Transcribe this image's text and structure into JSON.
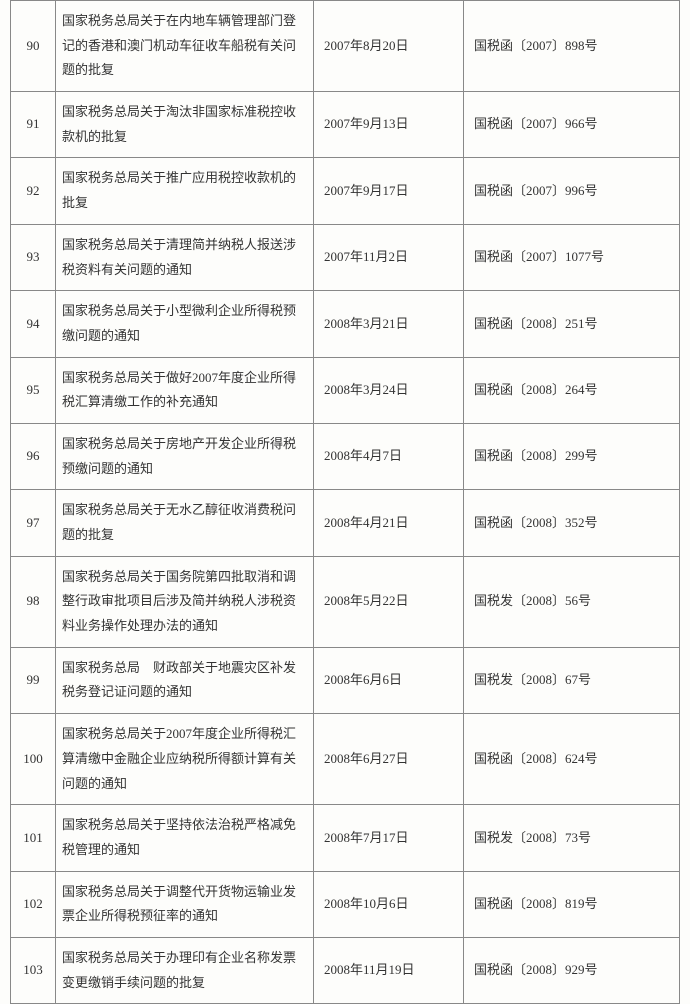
{
  "rows": [
    {
      "idx": "90",
      "title": "国家税务总局关于在内地车辆管理部门登记的香港和澳门机动车征收车船税有关问题的批复",
      "date": "2007年8月20日",
      "ref": "国税函〔2007〕898号"
    },
    {
      "idx": "91",
      "title": "国家税务总局关于淘汰非国家标准税控收款机的批复",
      "date": "2007年9月13日",
      "ref": "国税函〔2007〕966号"
    },
    {
      "idx": "92",
      "title": "国家税务总局关于推广应用税控收款机的批复",
      "date": "2007年9月17日",
      "ref": "国税函〔2007〕996号"
    },
    {
      "idx": "93",
      "title": "国家税务总局关于清理简并纳税人报送涉税资料有关问题的通知",
      "date": "2007年11月2日",
      "ref": "国税函〔2007〕1077号"
    },
    {
      "idx": "94",
      "title": "国家税务总局关于小型微利企业所得税预缴问题的通知",
      "date": "2008年3月21日",
      "ref": "国税函〔2008〕251号"
    },
    {
      "idx": "95",
      "title": "国家税务总局关于做好2007年度企业所得税汇算清缴工作的补充通知",
      "date": "2008年3月24日",
      "ref": "国税函〔2008〕264号"
    },
    {
      "idx": "96",
      "title": "国家税务总局关于房地产开发企业所得税预缴问题的通知",
      "date": "2008年4月7日",
      "ref": "国税函〔2008〕299号"
    },
    {
      "idx": "97",
      "title": "国家税务总局关于无水乙醇征收消费税问题的批复",
      "date": "2008年4月21日",
      "ref": "国税函〔2008〕352号"
    },
    {
      "idx": "98",
      "title": "国家税务总局关于国务院第四批取消和调整行政审批项目后涉及简并纳税人涉税资料业务操作处理办法的通知",
      "date": "2008年5月22日",
      "ref": "国税发〔2008〕56号"
    },
    {
      "idx": "99",
      "title": "国家税务总局　财政部关于地震灾区补发税务登记证问题的通知",
      "date": "2008年6月6日",
      "ref": "国税发〔2008〕67号"
    },
    {
      "idx": "100",
      "title": "国家税务总局关于2007年度企业所得税汇算清缴中金融企业应纳税所得额计算有关问题的通知",
      "date": "2008年6月27日",
      "ref": "国税函〔2008〕624号"
    },
    {
      "idx": "101",
      "title": "国家税务总局关于坚持依法治税严格减免税管理的通知",
      "date": "2008年7月17日",
      "ref": "国税发〔2008〕73号"
    },
    {
      "idx": "102",
      "title": "国家税务总局关于调整代开货物运输业发票企业所得税预征率的通知",
      "date": "2008年10月6日",
      "ref": "国税函〔2008〕819号"
    },
    {
      "idx": "103",
      "title": "国家税务总局关于办理印有企业名称发票变更缴销手续问题的批复",
      "date": "2008年11月19日",
      "ref": "国税函〔2008〕929号"
    }
  ]
}
